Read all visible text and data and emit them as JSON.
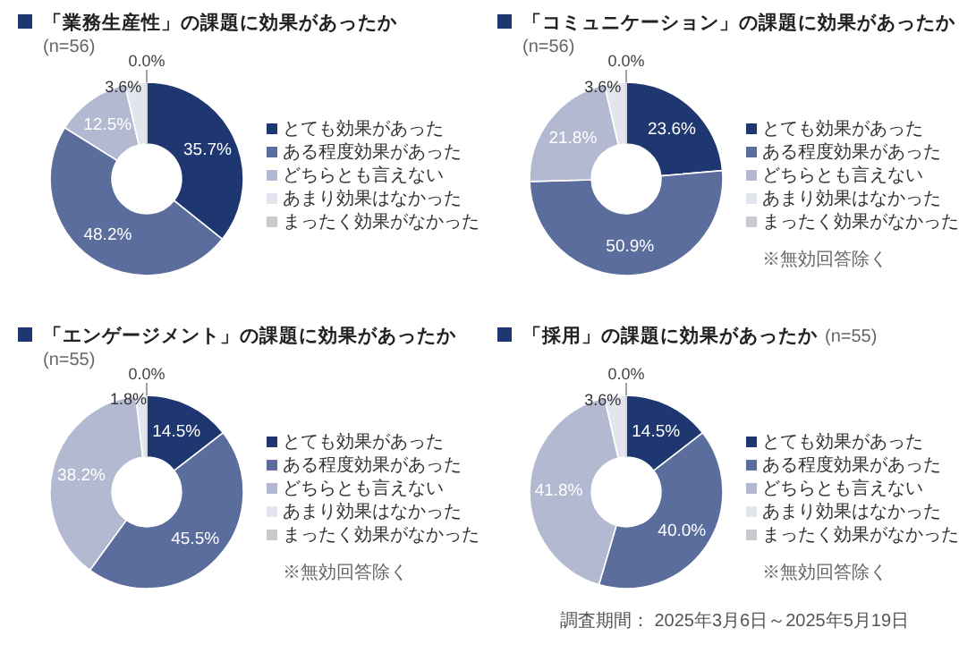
{
  "chart_data": [
    {
      "type": "donut",
      "title": "「業務生産性」の課題に効果があったか",
      "subtitle": "(n=56)",
      "categories": [
        "とても効果があった",
        "ある程度効果があった",
        "どちらとも言えない",
        "あまり効果はなかった",
        "まったく効果がなかった"
      ],
      "values": [
        35.7,
        48.2,
        12.5,
        3.6,
        0.0
      ],
      "colors": [
        "#1e3770",
        "#5a6d9c",
        "#b3b9d1",
        "#e3e5ee",
        "#c9cacf"
      ],
      "value_labels": [
        "35.7%",
        "48.2%",
        "12.5%",
        "3.6%",
        "0.0%"
      ],
      "legend": "right"
    },
    {
      "type": "donut",
      "title": "「コミュニケーション」の課題に効果があったか",
      "subtitle": "(n=56)",
      "categories": [
        "とても効果があった",
        "ある程度効果があった",
        "どちらとも言えない",
        "あまり効果はなかった",
        "まったく効果がなかった"
      ],
      "values": [
        23.6,
        50.9,
        21.8,
        3.6,
        0.0
      ],
      "colors": [
        "#1e3770",
        "#5a6d9c",
        "#b3b9d1",
        "#e3e5ee",
        "#c9cacf"
      ],
      "value_labels": [
        "23.6%",
        "50.9%",
        "21.8%",
        "3.6%",
        "0.0%"
      ],
      "legend": "right",
      "annotations": [
        "※無効回答除く"
      ]
    },
    {
      "type": "donut",
      "title": "「エンゲージメント」の課題に効果があったか",
      "subtitle": "(n=55)",
      "categories": [
        "とても効果があった",
        "ある程度効果があった",
        "どちらとも言えない",
        "あまり効果はなかった",
        "まったく効果がなかった"
      ],
      "values": [
        14.5,
        45.5,
        38.2,
        1.8,
        0.0
      ],
      "colors": [
        "#1e3770",
        "#5a6d9c",
        "#b3b9d1",
        "#e3e5ee",
        "#c9cacf"
      ],
      "value_labels": [
        "14.5%",
        "45.5%",
        "38.2%",
        "1.8%",
        "0.0%"
      ],
      "legend": "right",
      "annotations": [
        "※無効回答除く"
      ]
    },
    {
      "type": "donut",
      "title": "「採用」の課題に効果があったか",
      "subtitle": "(n=55)",
      "categories": [
        "とても効果があった",
        "ある程度効果があった",
        "どちらとも言えない",
        "あまり効果はなかった",
        "まったく効果がなかった"
      ],
      "values": [
        14.5,
        40.0,
        41.8,
        3.6,
        0.0
      ],
      "colors": [
        "#1e3770",
        "#5a6d9c",
        "#b3b9d1",
        "#e3e5ee",
        "#c9cacf"
      ],
      "value_labels": [
        "14.5%",
        "40.0%",
        "41.8%",
        "3.6%",
        "0.0%"
      ],
      "legend": "right",
      "annotations": [
        "※無効回答除く",
        "調査期間： 2025年3月6日～2025年5月19日"
      ]
    }
  ]
}
